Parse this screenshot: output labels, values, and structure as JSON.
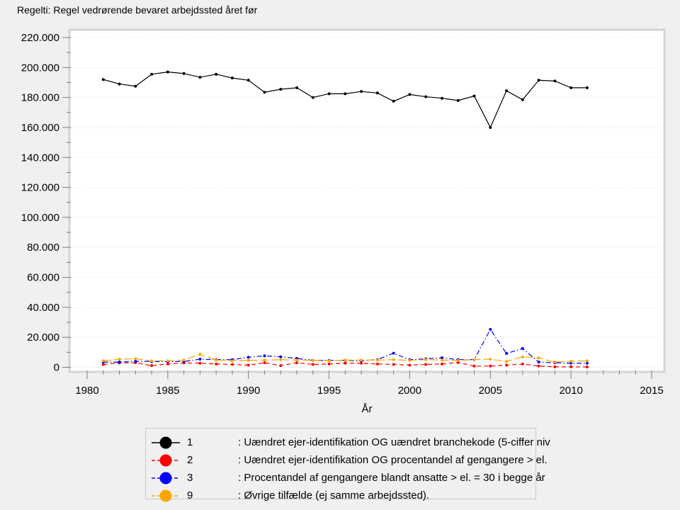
{
  "page": {
    "background": "#f0f0f0",
    "plot_background": "#ffffff",
    "plot_border_color": "#d4d4d4",
    "gridline_color": "#e4e4e4",
    "tick_color": "#7f7f7f",
    "text_color": "#000000"
  },
  "chart_data": {
    "type": "line",
    "title": "Regelti: Regel vedrørende bevaret arbejdssted året før",
    "xlabel": "År",
    "ylabel": "",
    "xlim": [
      1979,
      2015.7
    ],
    "ylim": [
      0,
      220000
    ],
    "grid": "horizontal-dotted",
    "legend_position": "bottom-center",
    "x_major_ticks": [
      1980,
      1985,
      1990,
      1995,
      2000,
      2005,
      2010,
      2015
    ],
    "x_tick_labels": [
      "1980",
      "1985",
      "1990",
      "1995",
      "2000",
      "2005",
      "2010",
      "2015"
    ],
    "x_minor_step": 1,
    "y_major_ticks": [
      0,
      20000,
      40000,
      60000,
      80000,
      100000,
      120000,
      140000,
      160000,
      180000,
      200000,
      220000
    ],
    "y_tick_labels": [
      "0",
      "20.000",
      "40.000",
      "60.000",
      "80.000",
      "100.000",
      "120.000",
      "140.000",
      "160.000",
      "180.000",
      "200.000",
      "220.000"
    ],
    "y_minor_step": 10000,
    "x": [
      1981,
      1982,
      1983,
      1984,
      1985,
      1986,
      1987,
      1988,
      1989,
      1990,
      1991,
      1992,
      1993,
      1994,
      1995,
      1996,
      1997,
      1998,
      1999,
      2000,
      2001,
      2002,
      2003,
      2004,
      2005,
      2006,
      2007,
      2008,
      2009,
      2010,
      2011
    ],
    "series": [
      {
        "key": "1",
        "color": "#000000",
        "dash": "solid",
        "legend_label": ": Uændret ejer-identifikation OG uændret branchekode (5-ciffer niv",
        "values": [
          192000,
          189000,
          187500,
          195500,
          197000,
          196000,
          193500,
          195500,
          193000,
          191500,
          183500,
          185500,
          186500,
          180000,
          182500,
          182500,
          184000,
          183000,
          177500,
          182000,
          180500,
          179500,
          178000,
          181000,
          160000,
          184500,
          178500,
          191500,
          191000,
          186500,
          186500
        ]
      },
      {
        "key": "2",
        "color": "#ff0000",
        "dash": "dash",
        "legend_label": ": Uændret ejer-identifikation OG procentandel af gengangere > el.",
        "values": [
          1900,
          2900,
          3000,
          1100,
          2200,
          2900,
          2700,
          2200,
          1900,
          1400,
          3000,
          1100,
          3000,
          1900,
          2200,
          2700,
          2700,
          2200,
          1900,
          1400,
          1900,
          2200,
          3200,
          800,
          800,
          1400,
          2200,
          800,
          300,
          300,
          200
        ]
      },
      {
        "key": "3",
        "color": "#0000ff",
        "dash": "dashdot",
        "legend_label": ": Procentandel af gengangere blandt ansatte > el. = 30 i begge år",
        "values": [
          3500,
          3500,
          4000,
          3800,
          3800,
          3800,
          5400,
          5100,
          5100,
          6700,
          7600,
          7000,
          5900,
          4600,
          4600,
          4600,
          4300,
          5100,
          9400,
          5100,
          5600,
          6300,
          5100,
          5100,
          25300,
          9200,
          12500,
          3500,
          3000,
          2700,
          2700
        ]
      },
      {
        "key": "9",
        "color": "#ffa500",
        "dash": "longdash",
        "legend_label": ": Øvrige tilfælde (ej samme arbejdssted).",
        "values": [
          4300,
          5400,
          5700,
          4300,
          4300,
          4800,
          8700,
          4800,
          4300,
          4600,
          4800,
          5100,
          4800,
          4600,
          4300,
          4800,
          4800,
          4800,
          5100,
          4600,
          5100,
          4800,
          4600,
          5100,
          5400,
          3800,
          7000,
          6200,
          3500,
          4000,
          4300
        ]
      }
    ]
  }
}
